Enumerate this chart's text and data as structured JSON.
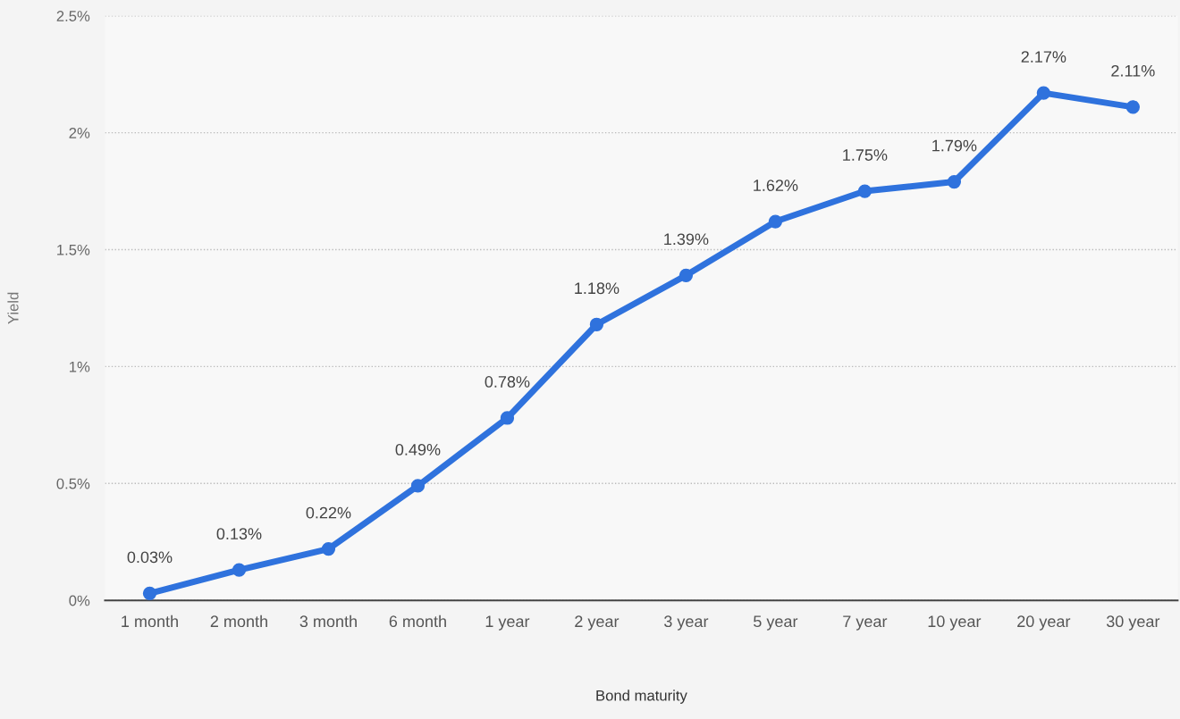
{
  "chart_data": {
    "type": "line",
    "xlabel": "Bond maturity",
    "ylabel": "Yield",
    "categories": [
      "1 month",
      "2 month",
      "3 month",
      "6 month",
      "1 year",
      "2 year",
      "3 year",
      "5 year",
      "7 year",
      "10 year",
      "20 year",
      "30 year"
    ],
    "series": [
      {
        "color": "#2f72dd",
        "values": [
          0.03,
          0.13,
          0.22,
          0.49,
          0.78,
          1.18,
          1.39,
          1.62,
          1.75,
          1.79,
          2.17,
          2.11
        ],
        "value_labels": [
          "0.03%",
          "0.13%",
          "0.22%",
          "0.49%",
          "0.78%",
          "1.18%",
          "1.39%",
          "1.62%",
          "1.75%",
          "1.79%",
          "2.17%",
          "2.11%"
        ]
      }
    ],
    "ylim": [
      0,
      2.5
    ],
    "yticks": [
      {
        "value": 0,
        "label": "0%"
      },
      {
        "value": 0.5,
        "label": "0.5%"
      },
      {
        "value": 1,
        "label": "1%"
      },
      {
        "value": 1.5,
        "label": "1.5%"
      },
      {
        "value": 2,
        "label": "2%"
      },
      {
        "value": 2.5,
        "label": "2.5%"
      }
    ],
    "grid": "y",
    "marker": "circle",
    "line_style": "solid"
  }
}
